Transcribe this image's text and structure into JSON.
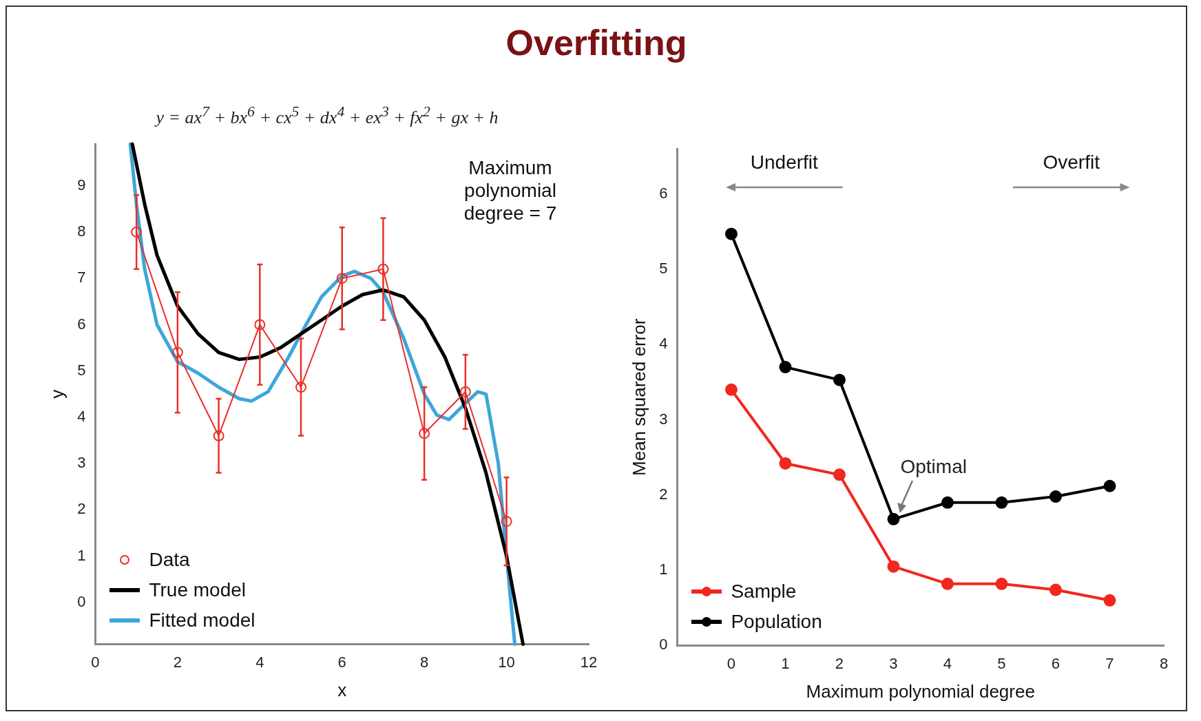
{
  "chart_data": [
    {
      "type": "line",
      "title": "Overfitting",
      "subtitle": "y = ax$^{7}$ + bx$^{6}$ + cx$^{5}$ + dx$^{4}$ + ex$^{3}$ + fx$^{2}$ + gx + h",
      "xlabel": "x",
      "ylabel": "y",
      "xlim": [
        0,
        12
      ],
      "xticks": [
        0,
        2,
        4,
        6,
        8,
        10,
        12
      ],
      "ylim": [
        -0.9,
        9.9
      ],
      "yticks": [
        0,
        1,
        2,
        3,
        4,
        5,
        6,
        7,
        8,
        9
      ],
      "grid": false,
      "legend": "bottom left",
      "annotations": [
        "Maximum polynomial degree = 7"
      ],
      "series": [
        {
          "name": "Data",
          "color": "#e8302a",
          "marker": "circle",
          "x": [
            1,
            2,
            3,
            4,
            5,
            6,
            7,
            8,
            9,
            10
          ],
          "values": [
            8.0,
            5.4,
            3.6,
            6.0,
            4.65,
            7.0,
            7.2,
            3.65,
            4.55,
            1.75
          ],
          "errors": [
            0.8,
            1.3,
            0.8,
            1.3,
            1.05,
            1.1,
            1.1,
            1.0,
            0.8,
            0.95
          ]
        },
        {
          "name": "True model",
          "color": "#000000",
          "marker": "none",
          "x": [
            0.9,
            1.2,
            1.5,
            2,
            2.5,
            3,
            3.5,
            4,
            4.5,
            5,
            5.5,
            6,
            6.5,
            7,
            7.5,
            8,
            8.5,
            9,
            9.5,
            10,
            10.4
          ],
          "values": [
            9.9,
            8.6,
            7.5,
            6.4,
            5.8,
            5.4,
            5.25,
            5.3,
            5.5,
            5.8,
            6.1,
            6.4,
            6.65,
            6.75,
            6.6,
            6.1,
            5.3,
            4.2,
            2.8,
            1.0,
            -0.9
          ]
        },
        {
          "name": "Fitted model",
          "color": "#3ea6d9",
          "marker": "none",
          "x": [
            0.85,
            1,
            1.2,
            1.5,
            2,
            2.5,
            3,
            3.5,
            3.8,
            4.2,
            4.7,
            5,
            5.5,
            6,
            6.3,
            6.7,
            7,
            7.5,
            8,
            8.3,
            8.6,
            9,
            9.3,
            9.5,
            9.8,
            10,
            10.2
          ],
          "values": [
            9.9,
            8.6,
            7.2,
            6.0,
            5.2,
            4.95,
            4.65,
            4.4,
            4.35,
            4.55,
            5.3,
            5.8,
            6.6,
            7.05,
            7.15,
            7.0,
            6.7,
            5.7,
            4.5,
            4.05,
            3.95,
            4.3,
            4.55,
            4.5,
            3.0,
            1.0,
            -0.9
          ]
        }
      ]
    },
    {
      "type": "line",
      "xlabel": "Maximum polynomial degree",
      "ylabel": "Mean squared error",
      "x": [
        0,
        1,
        2,
        3,
        4,
        5,
        6,
        7
      ],
      "xlim": [
        -1,
        8
      ],
      "xticks": [
        0,
        1,
        2,
        3,
        4,
        5,
        6,
        7,
        8
      ],
      "ylim": [
        0,
        6.6
      ],
      "yticks": [
        0,
        1,
        2,
        3,
        4,
        5,
        6
      ],
      "grid": false,
      "legend": "bottom left",
      "marker": "circle",
      "annotations": [
        "Underfit",
        "Overfit",
        {
          "text": "Optimal",
          "x": 3,
          "y": 1.68
        }
      ],
      "series": [
        {
          "name": "Sample",
          "color": "#f0281e",
          "values": [
            3.4,
            2.42,
            2.27,
            1.05,
            0.82,
            0.82,
            0.74,
            0.6
          ]
        },
        {
          "name": "Population",
          "color": "#000000",
          "values": [
            5.47,
            3.7,
            3.53,
            1.68,
            1.9,
            1.9,
            1.98,
            2.12
          ]
        }
      ]
    }
  ]
}
